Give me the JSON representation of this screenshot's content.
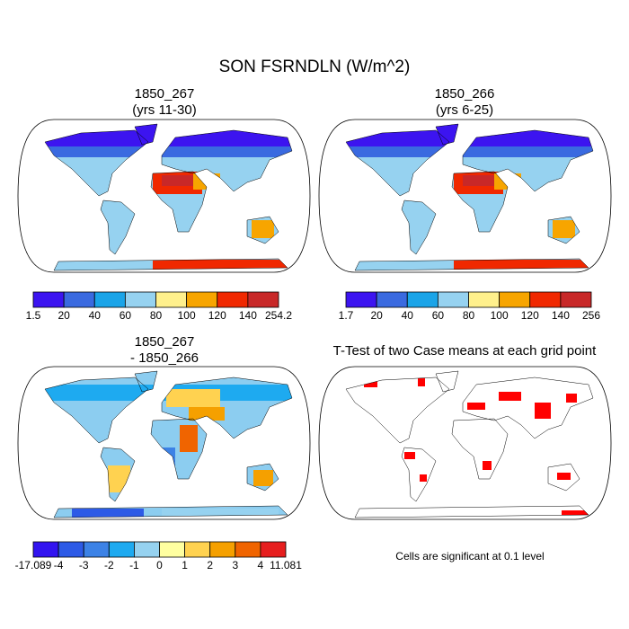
{
  "title": "SON FSRNDLN (W/m^2)",
  "panels": [
    {
      "title": [
        "1850_267",
        "(yrs 11-30)"
      ],
      "colorbar": {
        "labels": [
          "1.5",
          "20",
          "40",
          "60",
          "80",
          "100",
          "120",
          "140",
          "254.2"
        ],
        "colors": [
          "#3c14f0",
          "#3a6ae0",
          "#1aa4e8",
          "#96d2f0",
          "#fff08c",
          "#f7a500",
          "#f02800",
          "#c82828"
        ]
      }
    },
    {
      "title": [
        "1850_266",
        "(yrs 6-25)"
      ],
      "colorbar": {
        "labels": [
          "1.7",
          "20",
          "40",
          "60",
          "80",
          "100",
          "120",
          "140",
          "256"
        ],
        "colors": [
          "#3c14f0",
          "#3a6ae0",
          "#1aa4e8",
          "#96d2f0",
          "#fff08c",
          "#f7a500",
          "#f02800",
          "#c82828"
        ]
      }
    },
    {
      "title": [
        "1850_267",
        "- 1850_266"
      ],
      "colorbar": {
        "labels": [
          "-17.089",
          "-4",
          "-3",
          "-2",
          "-1",
          "0",
          "1",
          "2",
          "3",
          "4",
          "11.081"
        ],
        "colors": [
          "#3214f0",
          "#2d5ae6",
          "#3c82e6",
          "#1eaaf0",
          "#96d2f0",
          "#ffffa0",
          "#ffd250",
          "#f5a000",
          "#f06400",
          "#e61e1e"
        ]
      }
    },
    {
      "title": [
        "T-Test of two Case means at each grid point"
      ],
      "note": "Cells are significant at 0.1 level"
    }
  ]
}
